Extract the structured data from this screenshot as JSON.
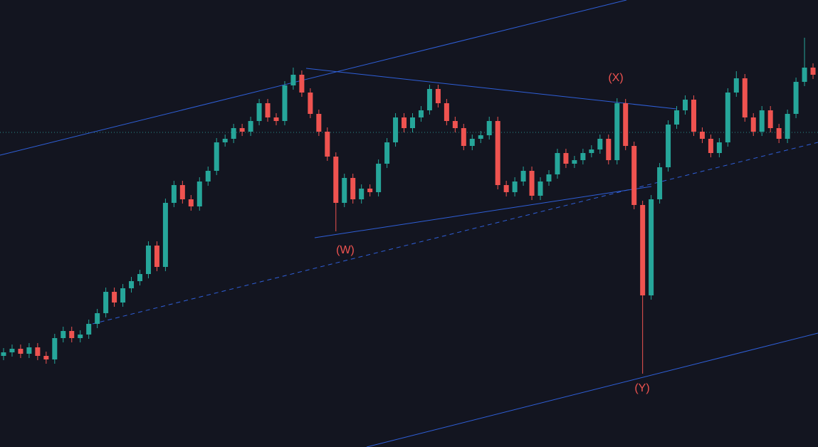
{
  "chart_data": {
    "type": "candlestick",
    "up_color": "#26a69a",
    "down_color": "#ef5350",
    "ylim": [
      0,
      628
    ],
    "annotations": [
      "(W)",
      "(X)",
      "(Y)"
    ],
    "open": [
      128,
      133,
      138,
      131,
      140,
      128,
      123,
      153,
      163,
      153,
      158,
      173,
      188,
      218,
      203,
      223,
      233,
      243,
      283,
      253,
      343,
      368,
      348,
      338,
      373,
      388,
      428,
      433,
      448,
      443,
      458,
      483,
      463,
      458,
      508,
      523,
      498,
      468,
      443,
      408,
      343,
      378,
      348,
      363,
      358,
      398,
      428,
      463,
      448,
      463,
      473,
      503,
      483,
      458,
      448,
      423,
      433,
      438,
      458,
      368,
      358,
      373,
      388,
      353,
      373,
      383,
      413,
      398,
      403,
      413,
      418,
      433,
      403,
      483,
      423,
      340,
      213,
      348,
      393,
      453,
      473,
      488,
      443,
      433,
      413,
      428,
      498,
      518,
      463,
      443,
      473,
      448,
      433,
      468,
      513,
      533
    ],
    "high": [
      139,
      144,
      144,
      146,
      146,
      134,
      159,
      169,
      169,
      164,
      179,
      194,
      224,
      224,
      229,
      239,
      249,
      289,
      289,
      349,
      374,
      374,
      354,
      379,
      394,
      434,
      439,
      454,
      454,
      464,
      489,
      489,
      469,
      514,
      533,
      529,
      504,
      474,
      449,
      414,
      384,
      384,
      369,
      369,
      404,
      434,
      469,
      469,
      469,
      479,
      509,
      509,
      489,
      464,
      454,
      439,
      444,
      464,
      464,
      374,
      379,
      394,
      394,
      379,
      389,
      419,
      419,
      409,
      419,
      424,
      439,
      439,
      490,
      489,
      429,
      346,
      354,
      399,
      459,
      479,
      494,
      494,
      449,
      439,
      434,
      504,
      528,
      524,
      469,
      479,
      479,
      454,
      474,
      519,
      575,
      539
    ],
    "low": [
      122,
      127,
      125,
      125,
      122,
      117,
      117,
      147,
      147,
      147,
      152,
      167,
      182,
      197,
      197,
      217,
      227,
      237,
      247,
      247,
      337,
      342,
      332,
      332,
      367,
      382,
      422,
      427,
      437,
      437,
      452,
      457,
      452,
      452,
      502,
      492,
      462,
      437,
      402,
      303,
      337,
      342,
      342,
      352,
      352,
      392,
      422,
      442,
      442,
      457,
      467,
      477,
      452,
      442,
      417,
      417,
      427,
      432,
      362,
      352,
      352,
      367,
      347,
      347,
      367,
      377,
      392,
      392,
      397,
      407,
      412,
      397,
      397,
      417,
      334,
      103,
      207,
      342,
      387,
      447,
      467,
      437,
      427,
      407,
      407,
      422,
      492,
      457,
      437,
      437,
      442,
      427,
      427,
      462,
      507,
      517
    ],
    "close": [
      133,
      138,
      131,
      140,
      128,
      123,
      153,
      163,
      153,
      158,
      173,
      188,
      218,
      203,
      223,
      233,
      243,
      283,
      253,
      343,
      368,
      348,
      338,
      373,
      388,
      428,
      433,
      448,
      443,
      458,
      483,
      463,
      458,
      508,
      523,
      498,
      468,
      443,
      408,
      343,
      378,
      348,
      363,
      358,
      398,
      428,
      463,
      448,
      463,
      473,
      503,
      483,
      458,
      448,
      423,
      433,
      438,
      458,
      368,
      358,
      373,
      388,
      353,
      373,
      383,
      413,
      398,
      403,
      413,
      418,
      433,
      403,
      483,
      423,
      340,
      213,
      348,
      393,
      453,
      473,
      488,
      443,
      433,
      413,
      428,
      498,
      518,
      463,
      443,
      473,
      448,
      433,
      468,
      513,
      533,
      523
    ]
  }
}
